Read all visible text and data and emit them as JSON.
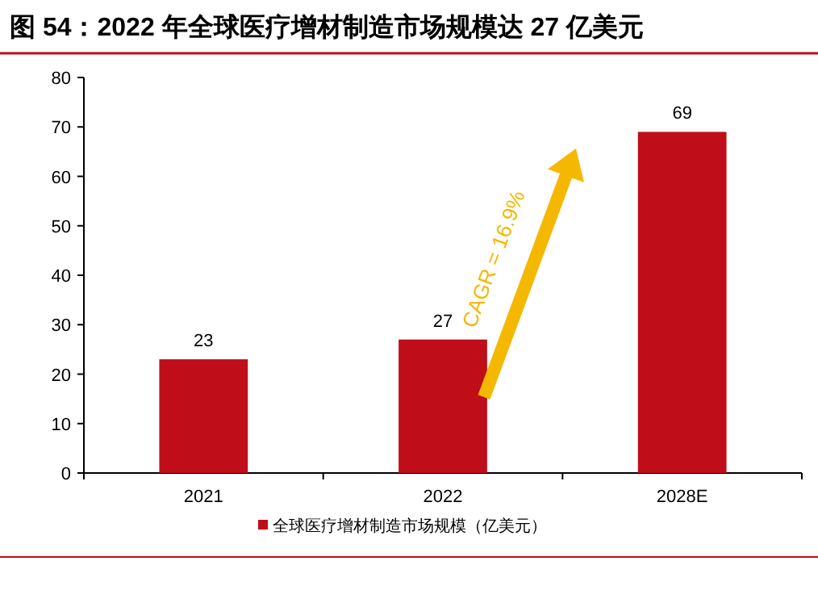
{
  "chart_data": {
    "type": "bar",
    "title": "图 54：2022 年全球医疗增材制造市场规模达 27 亿美元",
    "categories": [
      "2021",
      "2022",
      "2028E"
    ],
    "series": [
      {
        "name": "全球医疗增材制造市场规模（亿美元）",
        "color": "#c00d1a",
        "values": [
          23,
          27,
          69
        ]
      }
    ],
    "ylim": [
      0,
      80
    ],
    "yticks": [
      0,
      10,
      20,
      30,
      40,
      50,
      60,
      70,
      80
    ],
    "data_labels": true,
    "legend": "bottom",
    "grid": false,
    "annotations": [
      "CAGR = 16.9%"
    ]
  }
}
